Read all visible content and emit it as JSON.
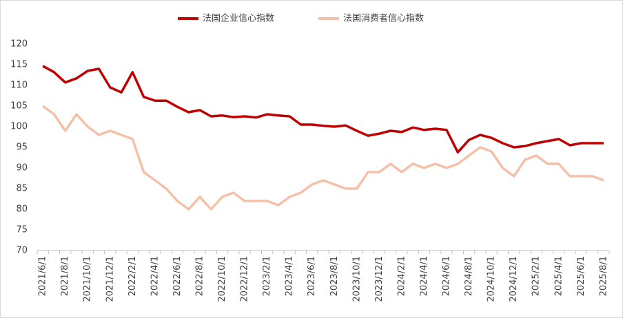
{
  "chart_data": {
    "type": "line",
    "categories": [
      "2021/6/1",
      null,
      "2021/8/1",
      null,
      "2021/10/1",
      null,
      "2021/12/1",
      null,
      "2022/2/1",
      null,
      "2022/4/1",
      null,
      "2022/6/1",
      null,
      "2022/8/1",
      null,
      "2022/10/1",
      null,
      "2022/12/1",
      null,
      "2023/2/1",
      null,
      "2023/4/1",
      null,
      "2023/6/1",
      null,
      "2023/8/1",
      null,
      "2023/10/1",
      null,
      "2023/12/1",
      null,
      "2024/2/1",
      null,
      "2024/4/1",
      null,
      "2024/6/1",
      null,
      "2024/8/1",
      null,
      "2024/10/1",
      null,
      "2024/12/1",
      null,
      "2025/2/1",
      null,
      "2025/4/1",
      null,
      "2025/6/1",
      null,
      "2025/8/1"
    ],
    "series": [
      {
        "name": "法国企业信心指数",
        "color": "#c00000",
        "values": [
          114.7,
          113.2,
          110.7,
          111.7,
          113.5,
          114,
          109.5,
          108.3,
          113.2,
          107.2,
          106.3,
          106.3,
          104.8,
          103.5,
          104,
          102.5,
          102.7,
          102.3,
          102.5,
          102.2,
          103,
          102.7,
          102.5,
          100.5,
          100.5,
          100.2,
          100,
          100.3,
          99,
          97.8,
          98.3,
          99,
          98.7,
          99.8,
          99.2,
          99.5,
          99.2,
          93.8,
          96.8,
          98,
          97.3,
          96,
          95,
          95.3,
          96,
          96.5,
          97,
          95.5,
          96,
          96,
          96
        ]
      },
      {
        "name": "法国消费者信心指数",
        "color": "#f4c1a8",
        "values": [
          105,
          103,
          99,
          103,
          100,
          98,
          99,
          98,
          97,
          89,
          87,
          85,
          82,
          80,
          83,
          80,
          83,
          84,
          82,
          82,
          82,
          81,
          83,
          84,
          86,
          87,
          86,
          85,
          85,
          89,
          89,
          91,
          89,
          91,
          90,
          91,
          90,
          91,
          93,
          95,
          94,
          90,
          88,
          92,
          93,
          91,
          91,
          88,
          88,
          88,
          87
        ]
      }
    ],
    "ylim": [
      70,
      120
    ],
    "yticks": [
      70,
      75,
      80,
      85,
      90,
      95,
      100,
      105,
      110,
      115,
      120
    ],
    "grid": false,
    "legend": "top"
  }
}
